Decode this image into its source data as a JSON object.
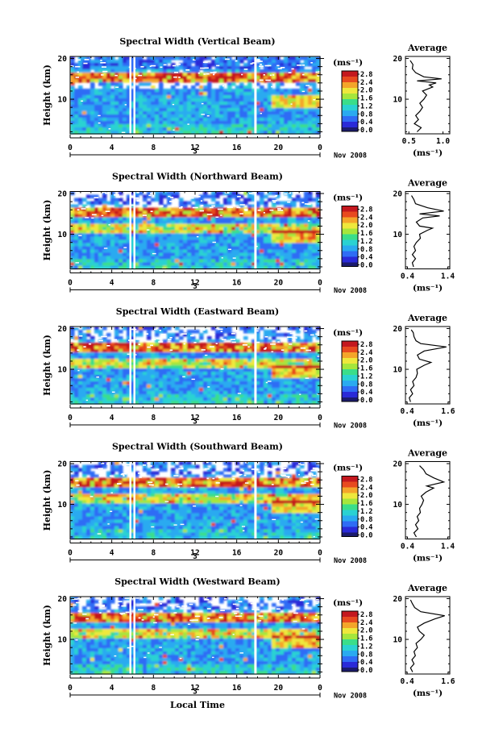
{
  "figure": {
    "xlabel": "Local Time",
    "ylabel": "Height (km)",
    "unit": "(ms⁻¹)",
    "date": "Nov 2008",
    "day": "3",
    "avg_title": "Average",
    "avg_unit": "(ms⁻¹)",
    "colorbar_ticks": [
      "2.8",
      "2.4",
      "2.0",
      "1.6",
      "1.2",
      "0.8",
      "0.4",
      "0.0"
    ],
    "colors": [
      "#1b1b6e",
      "#2a2ad8",
      "#2f6cf5",
      "#2aaaf0",
      "#2ad2d2",
      "#3ade8a",
      "#a6e63c",
      "#eee83c",
      "#f4a52a",
      "#e84a1f",
      "#c4181e"
    ]
  },
  "chart_data": [
    {
      "type": "heatmap",
      "title": "Spectral Width (Vertical Beam)",
      "xlabel": "Local Time",
      "ylabel": "Height (km)",
      "x_ticks": [
        "0",
        "4",
        "8",
        "12",
        "16",
        "20",
        "0"
      ],
      "xlim": [
        0,
        24
      ],
      "ylim": [
        1.5,
        20.5
      ],
      "y_ticks": [
        "20",
        "10"
      ],
      "colorbar": {
        "label": "(ms⁻¹)",
        "range": [
          0.0,
          2.8
        ]
      },
      "gaps_hours": [
        6.0,
        17.8
      ],
      "average_profile": {
        "title": "Average",
        "xlabel": "(ms⁻¹)",
        "x_ticks": [
          "0.5",
          "1.0"
        ],
        "xlim": [
          0.45,
          1.1
        ],
        "points": [
          [
            0.62,
            2.0
          ],
          [
            0.68,
            3.0
          ],
          [
            0.58,
            4.0
          ],
          [
            0.64,
            5.0
          ],
          [
            0.6,
            6.0
          ],
          [
            0.66,
            7.0
          ],
          [
            0.7,
            8.0
          ],
          [
            0.66,
            9.0
          ],
          [
            0.72,
            10.0
          ],
          [
            0.76,
            11.0
          ],
          [
            0.7,
            12.0
          ],
          [
            0.85,
            13.0
          ],
          [
            0.8,
            13.5
          ],
          [
            0.9,
            14.0
          ],
          [
            0.62,
            14.5
          ],
          [
            0.98,
            15.0
          ],
          [
            0.72,
            15.5
          ],
          [
            0.6,
            16.5
          ],
          [
            0.55,
            17.5
          ],
          [
            0.56,
            18.5
          ],
          [
            0.52,
            19.5
          ]
        ]
      }
    },
    {
      "type": "heatmap",
      "title": "Spectral Width (Northward Beam)",
      "xlabel": "Local Time",
      "ylabel": "Height (km)",
      "x_ticks": [
        "0",
        "4",
        "8",
        "12",
        "16",
        "20",
        "0"
      ],
      "xlim": [
        0,
        24
      ],
      "ylim": [
        1.5,
        20.5
      ],
      "y_ticks": [
        "20",
        "10"
      ],
      "colorbar": {
        "label": "(ms⁻¹)",
        "range": [
          0.0,
          2.8
        ]
      },
      "gaps_hours": [
        6.0,
        17.8
      ],
      "average_profile": {
        "title": "Average",
        "xlabel": "(ms⁻¹)",
        "x_ticks": [
          "0.4",
          "1.4"
        ],
        "xlim": [
          0.35,
          1.45
        ],
        "points": [
          [
            0.55,
            2.0
          ],
          [
            0.52,
            3.0
          ],
          [
            0.6,
            4.0
          ],
          [
            0.52,
            5.0
          ],
          [
            0.6,
            6.0
          ],
          [
            0.56,
            7.0
          ],
          [
            0.62,
            8.0
          ],
          [
            0.72,
            9.0
          ],
          [
            0.7,
            10.0
          ],
          [
            0.9,
            11.0
          ],
          [
            1.02,
            11.5
          ],
          [
            0.7,
            12.0
          ],
          [
            0.62,
            13.0
          ],
          [
            0.78,
            14.0
          ],
          [
            1.2,
            14.5
          ],
          [
            0.7,
            15.0
          ],
          [
            1.3,
            15.7
          ],
          [
            0.9,
            16.5
          ],
          [
            0.6,
            17.5
          ],
          [
            0.56,
            18.5
          ],
          [
            0.5,
            19.5
          ]
        ]
      }
    },
    {
      "type": "heatmap",
      "title": "Spectral Width (Eastward Beam)",
      "xlabel": "Local Time",
      "ylabel": "Height (km)",
      "x_ticks": [
        "0",
        "4",
        "8",
        "12",
        "16",
        "20",
        "0"
      ],
      "xlim": [
        0,
        24
      ],
      "ylim": [
        1.5,
        20.5
      ],
      "y_ticks": [
        "20",
        "10"
      ],
      "colorbar": {
        "label": "(ms⁻¹)",
        "range": [
          0.0,
          2.8
        ]
      },
      "gaps_hours": [
        6.0,
        17.8
      ],
      "average_profile": {
        "title": "Average",
        "xlabel": "(ms⁻¹)",
        "x_ticks": [
          "0.4",
          "1.6"
        ],
        "xlim": [
          0.35,
          1.65
        ],
        "points": [
          [
            0.5,
            2.0
          ],
          [
            0.46,
            3.0
          ],
          [
            0.56,
            4.0
          ],
          [
            0.5,
            5.0
          ],
          [
            0.6,
            6.0
          ],
          [
            0.56,
            7.0
          ],
          [
            0.66,
            8.0
          ],
          [
            0.7,
            9.0
          ],
          [
            0.68,
            10.0
          ],
          [
            0.9,
            11.0
          ],
          [
            1.1,
            11.7
          ],
          [
            0.76,
            12.5
          ],
          [
            0.7,
            13.5
          ],
          [
            0.9,
            14.5
          ],
          [
            1.55,
            15.5
          ],
          [
            0.8,
            16.3
          ],
          [
            0.66,
            17.0
          ],
          [
            0.6,
            18.0
          ],
          [
            0.58,
            19.0
          ],
          [
            0.52,
            19.7
          ]
        ]
      }
    },
    {
      "type": "heatmap",
      "title": "Spectral Width (Southward Beam)",
      "xlabel": "Local Time",
      "ylabel": "Height (km)",
      "x_ticks": [
        "0",
        "4",
        "8",
        "12",
        "16",
        "20",
        "0"
      ],
      "xlim": [
        0,
        24
      ],
      "ylim": [
        1.5,
        20.5
      ],
      "y_ticks": [
        "20",
        "10"
      ],
      "colorbar": {
        "label": "(ms⁻¹)",
        "range": [
          0.0,
          2.8
        ]
      },
      "gaps_hours": [
        6.0,
        17.8
      ],
      "average_profile": {
        "title": "Average",
        "xlabel": "(ms⁻¹)",
        "x_ticks": [
          "0.4",
          "1.4"
        ],
        "xlim": [
          0.35,
          1.45
        ],
        "points": [
          [
            0.62,
            2.0
          ],
          [
            0.56,
            3.0
          ],
          [
            0.66,
            4.0
          ],
          [
            0.6,
            5.0
          ],
          [
            0.68,
            6.0
          ],
          [
            0.64,
            7.0
          ],
          [
            0.72,
            8.0
          ],
          [
            0.7,
            9.0
          ],
          [
            0.76,
            10.0
          ],
          [
            0.8,
            11.0
          ],
          [
            0.74,
            12.0
          ],
          [
            0.86,
            13.0
          ],
          [
            1.05,
            14.0
          ],
          [
            0.88,
            14.5
          ],
          [
            1.3,
            15.5
          ],
          [
            1.05,
            16.5
          ],
          [
            0.86,
            17.5
          ],
          [
            0.8,
            18.5
          ],
          [
            0.7,
            19.5
          ]
        ]
      }
    },
    {
      "type": "heatmap",
      "title": "Spectral Width (Westward Beam)",
      "xlabel": "Local Time",
      "ylabel": "Height (km)",
      "x_ticks": [
        "0",
        "4",
        "8",
        "12",
        "16",
        "20",
        "0"
      ],
      "xlim": [
        0,
        24
      ],
      "ylim": [
        1.5,
        20.5
      ],
      "y_ticks": [
        "20",
        "10"
      ],
      "colorbar": {
        "label": "(ms⁻¹)",
        "range": [
          0.0,
          2.8
        ]
      },
      "gaps_hours": [
        6.0,
        17.8
      ],
      "average_profile": {
        "title": "Average",
        "xlabel": "(ms⁻¹)",
        "x_ticks": [
          "0.4",
          "1.6"
        ],
        "xlim": [
          0.35,
          1.65
        ],
        "points": [
          [
            0.56,
            2.0
          ],
          [
            0.5,
            3.0
          ],
          [
            0.6,
            4.0
          ],
          [
            0.54,
            5.0
          ],
          [
            0.64,
            6.0
          ],
          [
            0.6,
            7.0
          ],
          [
            0.7,
            8.0
          ],
          [
            0.66,
            9.0
          ],
          [
            0.8,
            10.0
          ],
          [
            0.9,
            11.0
          ],
          [
            0.76,
            12.0
          ],
          [
            0.7,
            13.0
          ],
          [
            0.9,
            14.0
          ],
          [
            1.2,
            15.0
          ],
          [
            1.5,
            15.8
          ],
          [
            0.8,
            16.8
          ],
          [
            0.62,
            17.8
          ],
          [
            0.55,
            18.8
          ],
          [
            0.5,
            19.7
          ]
        ]
      }
    }
  ]
}
